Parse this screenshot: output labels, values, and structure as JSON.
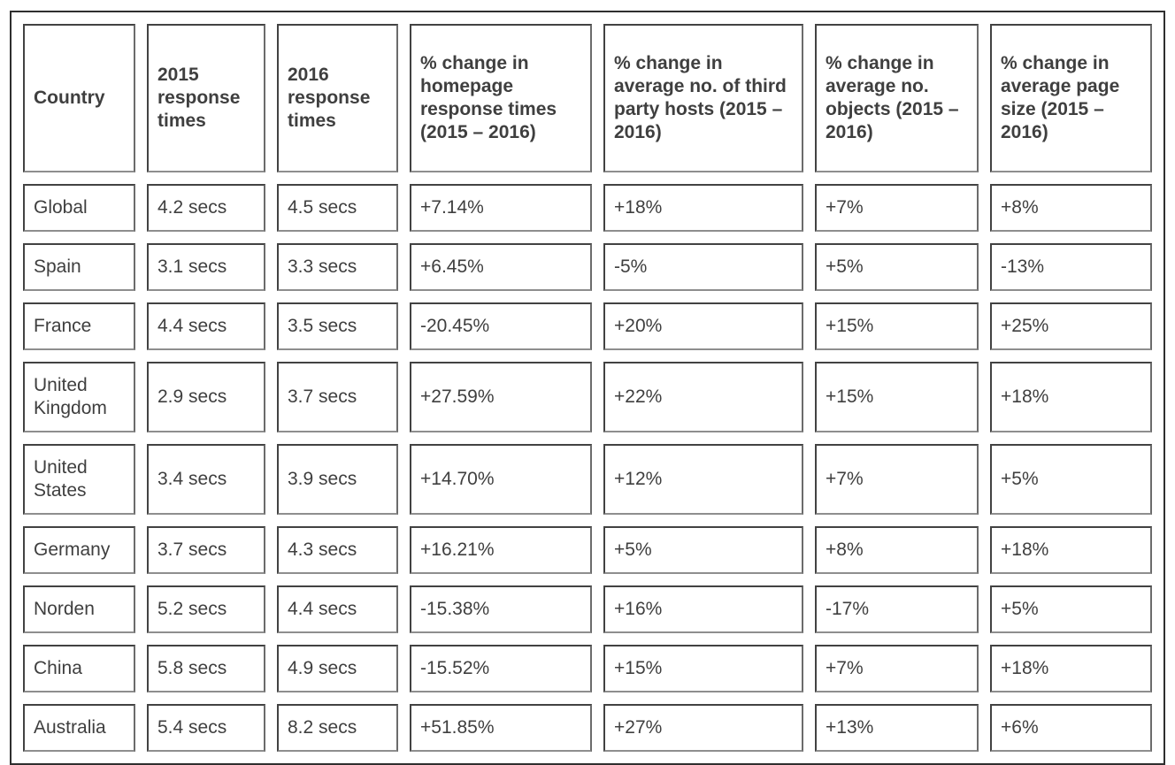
{
  "colors": {
    "text": "#3f3f3f",
    "outer_border": "#2f2f2f",
    "cell_border_dark": "#424242",
    "cell_border_mid": "#6b6b6b",
    "cell_border_light": "#8e8e8e",
    "background": "#ffffff"
  },
  "chart_data": {
    "type": "table",
    "columns": [
      "Country",
      "2015 response times",
      "2016 response times",
      "% change in homepage response times (2015 – 2016)",
      "% change in average no. of third party hosts (2015 – 2016)",
      "% change in average no. objects (2015 – 2016)",
      "% change in average page size (2015 – 2016)"
    ],
    "rows": [
      [
        "Global",
        "4.2 secs",
        "4.5 secs",
        "+7.14%",
        "+18%",
        "+7%",
        "+8%"
      ],
      [
        "Spain",
        "3.1 secs",
        "3.3 secs",
        "+6.45%",
        "-5%",
        "+5%",
        "-13%"
      ],
      [
        "France",
        "4.4 secs",
        "3.5 secs",
        "-20.45%",
        "+20%",
        "+15%",
        "+25%"
      ],
      [
        "United Kingdom",
        "2.9 secs",
        "3.7 secs",
        "+27.59%",
        "+22%",
        "+15%",
        "+18%"
      ],
      [
        "United States",
        "3.4 secs",
        "3.9 secs",
        "+14.70%",
        "+12%",
        "+7%",
        "+5%"
      ],
      [
        "Germany",
        "3.7 secs",
        "4.3 secs",
        "+16.21%",
        "+5%",
        "+8%",
        "+18%"
      ],
      [
        "Norden",
        "5.2 secs",
        "4.4 secs",
        "-15.38%",
        "+16%",
        "-17%",
        "+5%"
      ],
      [
        "China",
        "5.8 secs",
        "4.9 secs",
        "-15.52%",
        "+15%",
        "+7%",
        "+18%"
      ],
      [
        "Australia",
        "5.4 secs",
        "8.2 secs",
        "+51.85%",
        "+27%",
        "+13%",
        "+6%"
      ]
    ]
  }
}
